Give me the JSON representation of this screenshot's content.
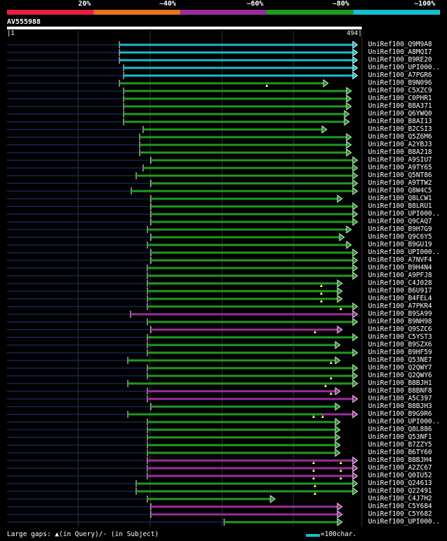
{
  "legend": {
    "labels": [
      "20%",
      "~40%",
      "~60%",
      "~80%",
      "~100%"
    ],
    "colors": [
      "#e8203a",
      "#e8731f",
      "#9b2d9b",
      "#1f9a1f",
      "#17becf"
    ]
  },
  "query": {
    "name": "AV555988",
    "start": "1",
    "end": "494"
  },
  "hits": [
    {
      "name": "UniRef100_Q9M9A8",
      "color": "#17becf",
      "start": 171
    },
    {
      "name": "UniRef100_A8MQI7",
      "color": "#17becf",
      "start": 171
    },
    {
      "name": "UniRef100_B9RE20",
      "color": "#17becf",
      "start": 171
    },
    {
      "name": "UniRef100_UPI000..",
      "color": "#17becf",
      "start": 177
    },
    {
      "name": "UniRef100_A7PGR6",
      "color": "#17becf",
      "start": 177
    },
    {
      "name": "UniRef100_B9N096",
      "color": "#1f9a1f",
      "start": 171,
      "end": 470,
      "gaps": [
        382
      ]
    },
    {
      "name": "UniRef100_C5XZC9",
      "color": "#1f9a1f",
      "start": 177,
      "end": 503
    },
    {
      "name": "UniRef100_C0PHR1",
      "color": "#1f9a1f",
      "start": 177,
      "end": 503
    },
    {
      "name": "UniRef100_B8A371",
      "color": "#1f9a1f",
      "start": 177,
      "end": 503
    },
    {
      "name": "UniRef100_Q6YWQ0",
      "color": "#1f9a1f",
      "start": 177,
      "end": 500
    },
    {
      "name": "UniRef100_B8AI13",
      "color": "#1f9a1f",
      "start": 177,
      "end": 500
    },
    {
      "name": "UniRef100_B2CSI3",
      "color": "#1f9a1f",
      "start": 205,
      "end": 468
    },
    {
      "name": "UniRef100_Q5Z6M6",
      "color": "#1f9a1f",
      "start": 200,
      "end": 503
    },
    {
      "name": "UniRef100_A2YBJ3",
      "color": "#1f9a1f",
      "start": 200,
      "end": 503
    },
    {
      "name": "UniRef100_B8A218",
      "color": "#1f9a1f",
      "start": 200,
      "end": 503
    },
    {
      "name": "UniRef100_A9SIU7",
      "color": "#1f9a1f",
      "start": 216
    },
    {
      "name": "UniRef100_A9TY65",
      "color": "#1f9a1f",
      "start": 205
    },
    {
      "name": "UniRef100_Q5NT86",
      "color": "#1f9a1f",
      "start": 195
    },
    {
      "name": "UniRef100_A9TTW2",
      "color": "#1f9a1f",
      "start": 216
    },
    {
      "name": "UniRef100_Q8W4C5",
      "color": "#1f9a1f",
      "start": 188
    },
    {
      "name": "UniRef100_Q8LCW1",
      "color": "#1f9a1f",
      "start": 216,
      "end": 490
    },
    {
      "name": "UniRef100_B8LRU1",
      "color": "#1f9a1f",
      "start": 216
    },
    {
      "name": "UniRef100_UPI000..",
      "color": "#1f9a1f",
      "start": 216
    },
    {
      "name": "UniRef100_Q9CAQ7",
      "color": "#1f9a1f",
      "start": 216
    },
    {
      "name": "UniRef100_B9H7G9",
      "color": "#1f9a1f",
      "start": 211,
      "end": 503
    },
    {
      "name": "UniRef100_Q9C6Y5",
      "color": "#1f9a1f",
      "start": 216,
      "end": 493
    },
    {
      "name": "UniRef100_B9GU19",
      "color": "#1f9a1f",
      "start": 211,
      "end": 503
    },
    {
      "name": "UniRef100_UPI000..",
      "color": "#1f9a1f",
      "start": 216
    },
    {
      "name": "UniRef100_A7NVF4",
      "color": "#1f9a1f",
      "start": 216
    },
    {
      "name": "UniRef100_B9H4N4",
      "color": "#1f9a1f",
      "start": 211
    },
    {
      "name": "UniRef100_A9PFJ8",
      "color": "#1f9a1f",
      "start": 211
    },
    {
      "name": "UniRef100_C4J028",
      "color": "#1f9a1f",
      "start": 211,
      "end": 490,
      "gaps": [
        460
      ]
    },
    {
      "name": "UniRef100_B6U917",
      "color": "#1f9a1f",
      "start": 211,
      "end": 490,
      "gaps": [
        460
      ]
    },
    {
      "name": "UniRef100_B4FEL4",
      "color": "#1f9a1f",
      "start": 211,
      "end": 490,
      "gaps": [
        460
      ]
    },
    {
      "name": "UniRef100_A7PKR4",
      "color": "#1f9a1f",
      "start": 211,
      "gaps": [
        488
      ]
    },
    {
      "name": "UniRef100_B9SA99",
      "color": "#9b2d9b",
      "start": 187
    },
    {
      "name": "UniRef100_B9NH98",
      "color": "#1f9a1f",
      "start": 211
    },
    {
      "name": "UniRef100_Q9SZC6",
      "color": "#9b2d9b",
      "start": 216,
      "end": 490,
      "gaps": [
        451
      ]
    },
    {
      "name": "UniRef100_C5YST3",
      "color": "#1f9a1f",
      "start": 211
    },
    {
      "name": "UniRef100_B9SZX6",
      "color": "#1f9a1f",
      "start": 211,
      "end": 487
    },
    {
      "name": "UniRef100_B9HF59",
      "color": "#1f9a1f",
      "start": 211
    },
    {
      "name": "UniRef100_Q53NE7",
      "color": "#1f9a1f",
      "start": 183,
      "end": 487,
      "gaps": [
        474
      ]
    },
    {
      "name": "UniRef100_Q2QWY7",
      "color": "#1f9a1f",
      "start": 211
    },
    {
      "name": "UniRef100_Q2QWY6",
      "color": "#1f9a1f",
      "start": 211,
      "gaps": [
        474
      ]
    },
    {
      "name": "UniRef100_B8BJH1",
      "color": "#1f9a1f",
      "start": 183,
      "gaps": [
        466
      ]
    },
    {
      "name": "UniRef100_B8BNF8",
      "color": "#9b2d9b",
      "start": 211,
      "end": 487,
      "gaps": [
        474
      ]
    },
    {
      "name": "UniRef100_A5C397",
      "color": "#9b2d9b",
      "start": 211
    },
    {
      "name": "UniRef100_B8BJH3",
      "color": "#1f9a1f",
      "start": 216,
      "end": 487
    },
    {
      "name": "UniRef100_B9G9R6",
      "color": "#1f9a1f",
      "start": 183,
      "gaps": [
        449,
        462
      ],
      "tail_color": "#9b2d9b"
    },
    {
      "name": "UniRef100_UPI000..",
      "color": "#1f9a1f",
      "start": 211,
      "end": 487
    },
    {
      "name": "UniRef100_Q8L886",
      "color": "#1f9a1f",
      "start": 211,
      "end": 487
    },
    {
      "name": "UniRef100_Q53NF1",
      "color": "#1f9a1f",
      "start": 211,
      "end": 487
    },
    {
      "name": "UniRef100_B7ZZY5",
      "color": "#1f9a1f",
      "start": 211,
      "end": 487
    },
    {
      "name": "UniRef100_B6TY60",
      "color": "#1f9a1f",
      "start": 211,
      "end": 487
    },
    {
      "name": "UniRef100_B8BJH4",
      "color": "#9b2d9b",
      "start": 211,
      "gaps": [
        449,
        488
      ]
    },
    {
      "name": "UniRef100_A2ZC67",
      "color": "#9b2d9b",
      "start": 211,
      "gaps": [
        449,
        488
      ]
    },
    {
      "name": "UniRef100_Q0IU52",
      "color": "#9b2d9b",
      "start": 211,
      "gaps": [
        449,
        488
      ]
    },
    {
      "name": "UniRef100_Q24613",
      "color": "#1f9a1f",
      "start": 195,
      "gaps": [
        451
      ]
    },
    {
      "name": "UniRef100_Q22491",
      "color": "#1f9a1f",
      "start": 195,
      "gaps": [
        451
      ]
    },
    {
      "name": "UniRef100_C4J7H2",
      "color": "#1f9a1f",
      "start": 211,
      "end": 394
    },
    {
      "name": "UniRef100_C5Y684",
      "color": "#9b2d9b",
      "start": 216,
      "end": 490
    },
    {
      "name": "UniRef100_C5Y682",
      "color": "#9b2d9b",
      "start": 216,
      "end": 490
    },
    {
      "name": "UniRef100_UPI000..",
      "color": "#1f9a1f",
      "start": 321,
      "end": 490
    }
  ],
  "footer": {
    "gaps_text": "Large gaps: ▲(in Query)/- (in Subject)",
    "scale_text": "=100char."
  }
}
